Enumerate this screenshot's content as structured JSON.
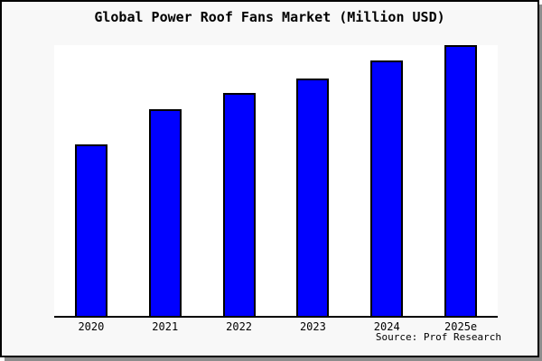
{
  "figure": {
    "title": "Global Power Roof Fans Market (Million USD)",
    "source": "Source: Prof Research"
  },
  "chart_data": {
    "type": "bar",
    "title": "Global Power Roof Fans Market (Million USD)",
    "categories": [
      "2020",
      "2021",
      "2022",
      "2023",
      "2024",
      "2025e"
    ],
    "values": [
      63.3,
      76.2,
      82.2,
      87.8,
      94.2,
      100
    ],
    "value_scale": "relative index; no y-axis tick labels shown in chart, tallest bar (2025e) normalized to 100",
    "xlabel": "",
    "ylabel": "",
    "ylim": [
      0,
      100
    ],
    "grid": false,
    "legend": false,
    "bar_color": "#0000ff",
    "bar_border_color": "#000000",
    "figure_background": "#f8f8f8",
    "plot_background": "#ffffff",
    "annotations": [
      "Source: Prof Research"
    ]
  }
}
